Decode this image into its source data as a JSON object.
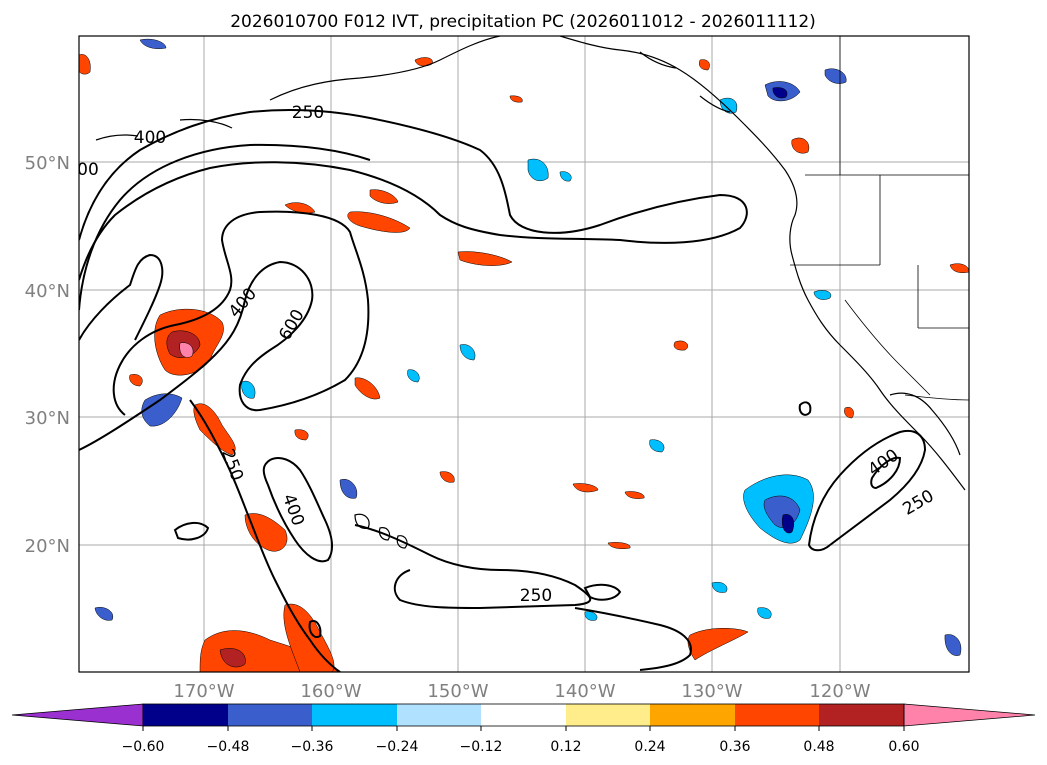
{
  "title": "2026010700 F012 IVT, precipitation PC (2026011012 - 2026011112)",
  "lat_labels": [
    "50°N",
    "40°N",
    "30°N",
    "20°N"
  ],
  "lon_labels": [
    "170°W",
    "160°W",
    "150°W",
    "140°W",
    "130°W",
    "120°W"
  ],
  "contour_labels": [
    "250",
    "400",
    "00",
    "400",
    "600",
    "250",
    "400",
    "250",
    "400",
    "250"
  ],
  "colorbar": {
    "ticks": [
      "−0.60",
      "−0.48",
      "−0.36",
      "−0.24",
      "−0.12",
      "0.12",
      "0.24",
      "0.36",
      "0.48",
      "0.60"
    ],
    "colors": [
      "#9b30d0",
      "#00008b",
      "#3a5fcd",
      "#00bfff",
      "#b0e2ff",
      "#ffffff",
      "#ffec8b",
      "#ffa500",
      "#ff4500",
      "#b22222",
      "#ff82ab"
    ]
  }
}
